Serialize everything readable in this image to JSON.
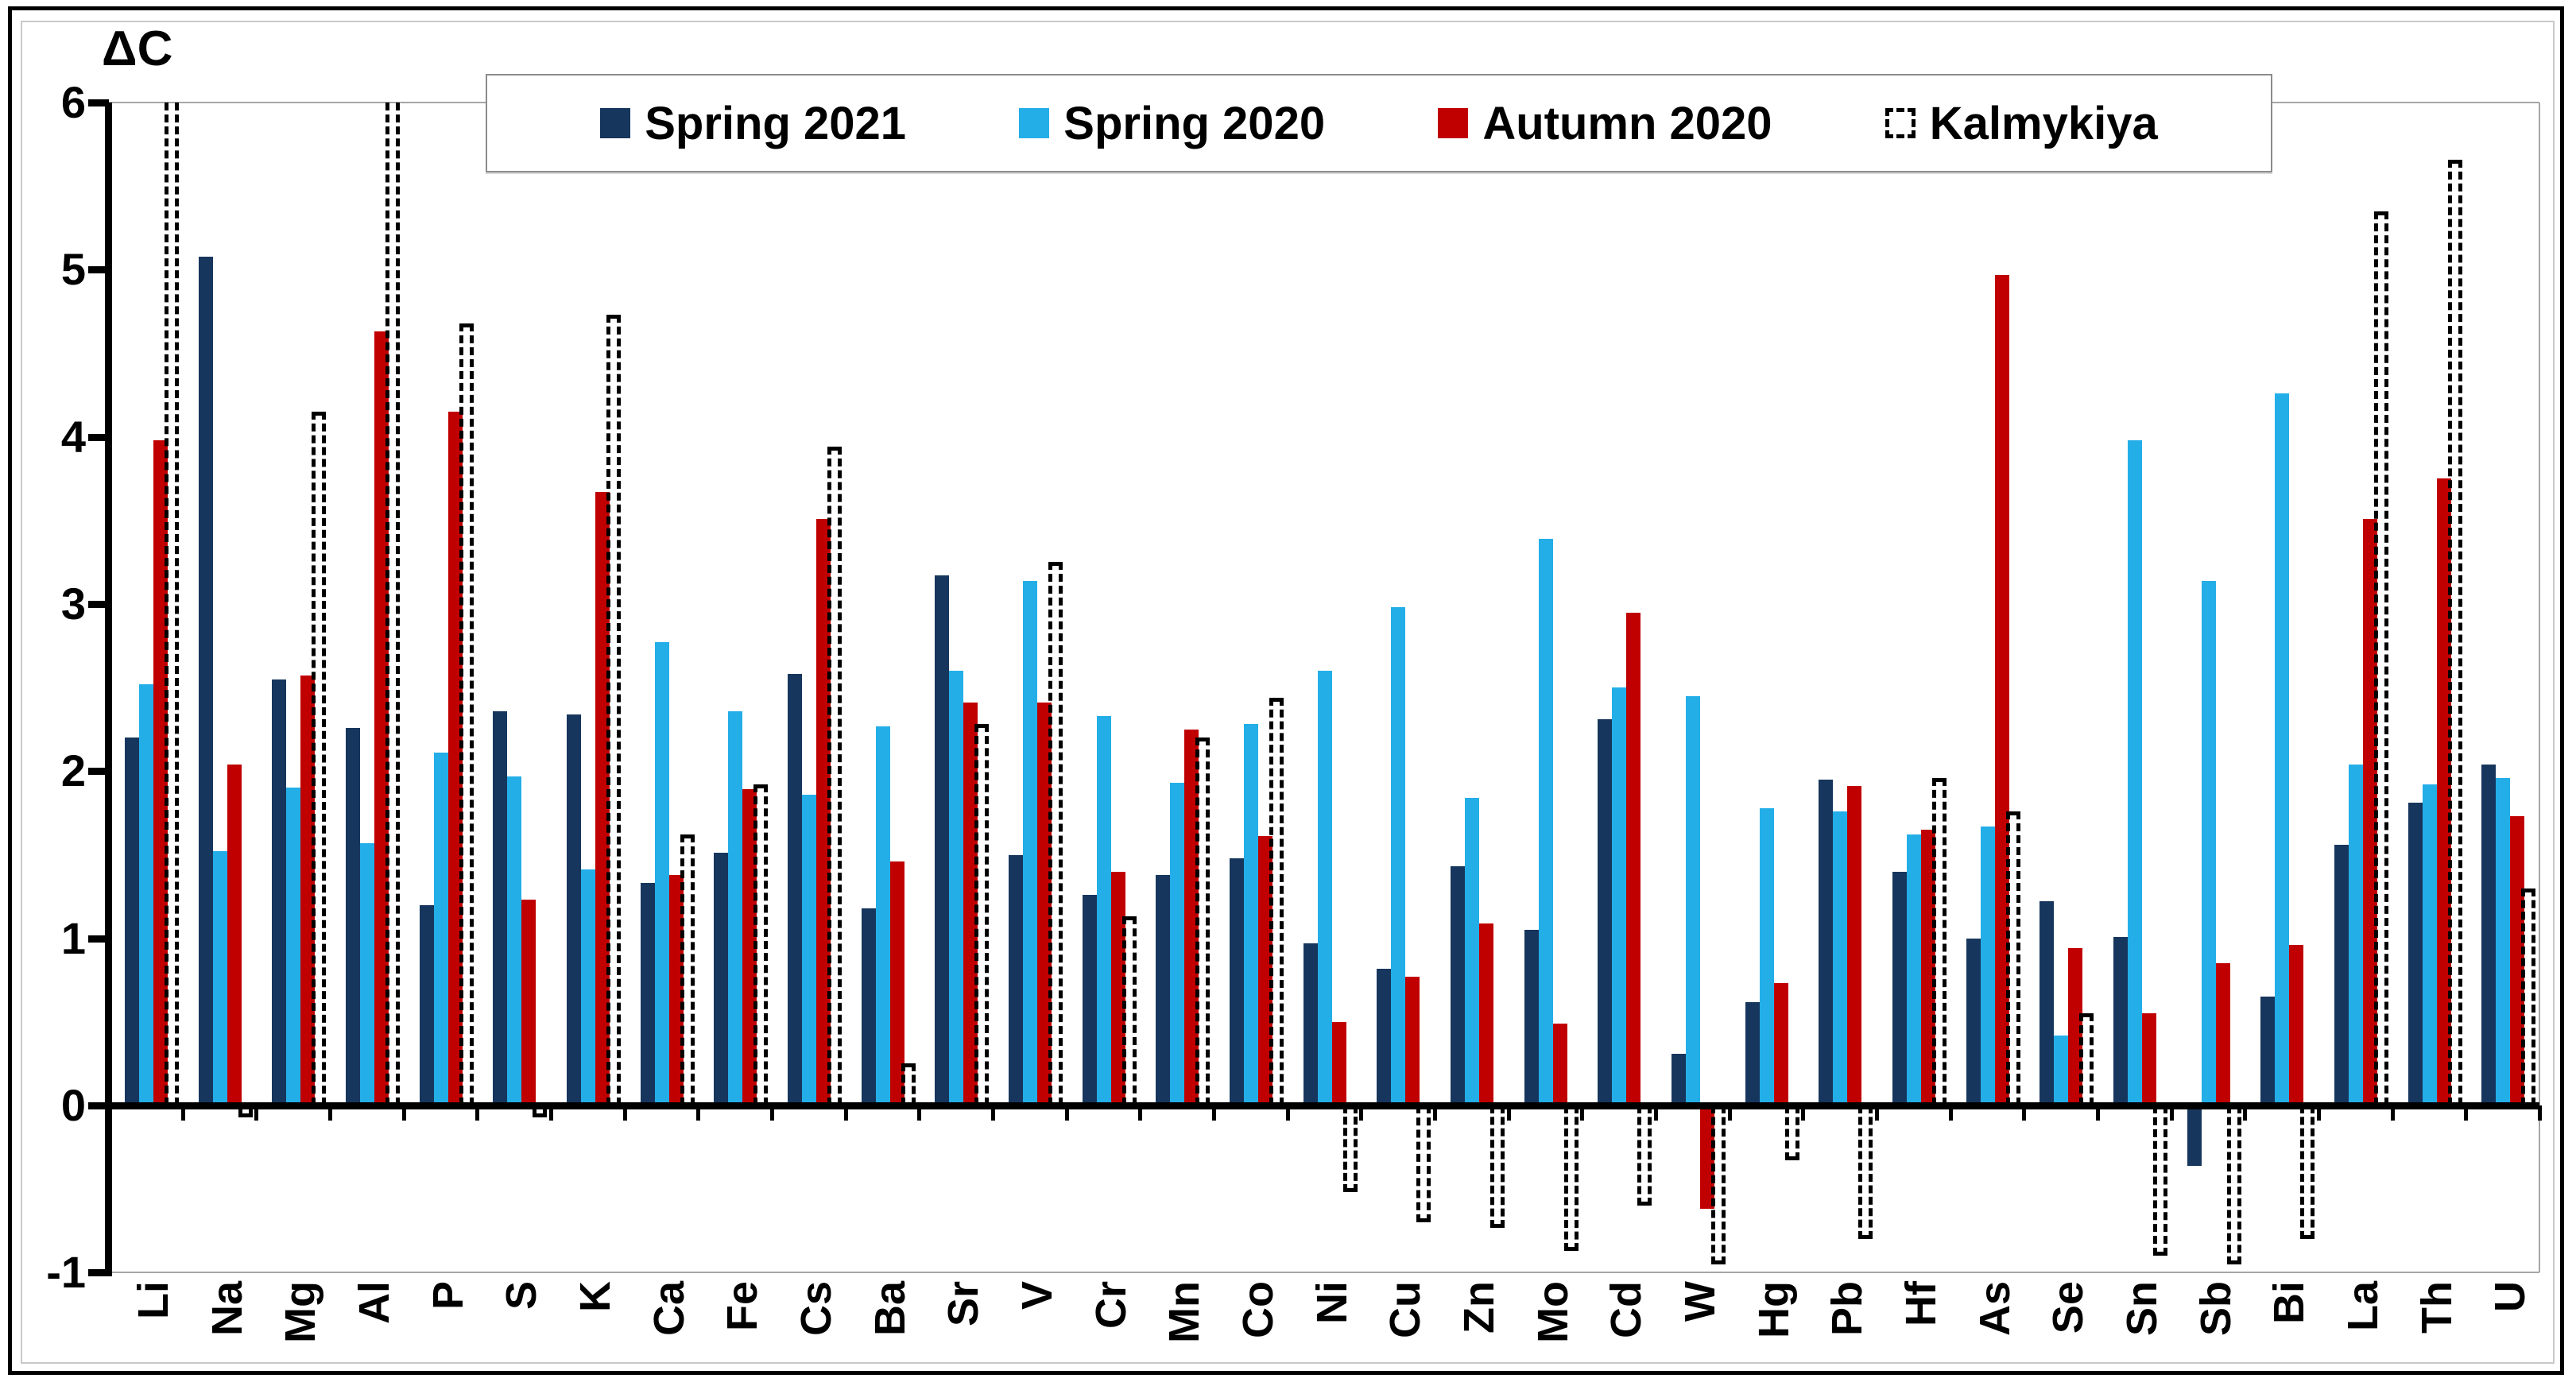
{
  "title": "ΔC",
  "chart_data": {
    "type": "bar",
    "title": "ΔC",
    "ylabel": "ΔC",
    "xlabel": "",
    "ylim": [
      -1,
      6
    ],
    "y_ticks": [
      6,
      5,
      4,
      3,
      2,
      1,
      0,
      -1
    ],
    "grid": false,
    "legend_position": "top-center",
    "categories": [
      "Li",
      "Na",
      "Mg",
      "Al",
      "P",
      "S",
      "K",
      "Ca",
      "Fe",
      "Cs",
      "Ba",
      "Sr",
      "V",
      "Cr",
      "Mn",
      "Co",
      "Ni",
      "Cu",
      "Zn",
      "Mo",
      "Cd",
      "W",
      "Hg",
      "Pb",
      "Hf",
      "As",
      "Se",
      "Sn",
      "Sb",
      "Bi",
      "La",
      "Th",
      "U"
    ],
    "series": [
      {
        "name": "Spring 2021",
        "style": "solid",
        "color": "#17365d",
        "values": [
          2.2,
          5.08,
          2.55,
          2.26,
          1.2,
          2.36,
          2.34,
          1.33,
          1.51,
          2.58,
          1.18,
          3.17,
          1.5,
          1.26,
          1.38,
          1.48,
          0.97,
          0.82,
          1.43,
          1.05,
          2.31,
          0.31,
          0.62,
          1.95,
          1.4,
          1.0,
          1.22,
          1.01,
          -0.36,
          0.65,
          1.56,
          1.81,
          2.04
        ]
      },
      {
        "name": "Spring 2020",
        "style": "solid",
        "color": "#23aee8",
        "values": [
          2.52,
          1.52,
          1.9,
          1.57,
          2.11,
          1.97,
          1.41,
          2.77,
          2.36,
          1.86,
          2.27,
          2.6,
          3.14,
          2.33,
          1.93,
          2.28,
          2.6,
          2.98,
          1.84,
          3.39,
          2.5,
          2.45,
          1.78,
          1.76,
          1.62,
          1.67,
          0.42,
          3.98,
          3.14,
          4.26,
          2.04,
          1.92,
          1.96
        ]
      },
      {
        "name": "Autumn 2020",
        "style": "solid",
        "color": "#c00000",
        "values": [
          3.98,
          2.04,
          2.57,
          4.63,
          4.15,
          1.23,
          3.67,
          1.38,
          1.89,
          3.51,
          1.46,
          2.41,
          2.41,
          1.4,
          2.25,
          1.61,
          0.5,
          0.77,
          1.09,
          0.49,
          2.95,
          -0.62,
          0.73,
          1.91,
          1.65,
          4.97,
          0.94,
          0.55,
          0.85,
          0.96,
          3.51,
          3.75,
          1.73
        ]
      },
      {
        "name": "Kalmykiya",
        "style": "dashed-outline",
        "color": "#000000",
        "values": [
          6.0,
          -0.07,
          4.15,
          6.0,
          4.68,
          -0.07,
          4.73,
          1.62,
          1.92,
          3.94,
          0.25,
          2.28,
          3.25,
          1.13,
          2.2,
          2.44,
          -0.52,
          -0.7,
          -0.73,
          -0.87,
          -0.6,
          -0.95,
          -0.33,
          -0.8,
          1.96,
          1.76,
          0.55,
          -0.9,
          -0.95,
          -0.8,
          5.35,
          5.66,
          1.3
        ],
        "clipped_above_ymax": [
          "Li",
          "Al"
        ]
      }
    ]
  }
}
